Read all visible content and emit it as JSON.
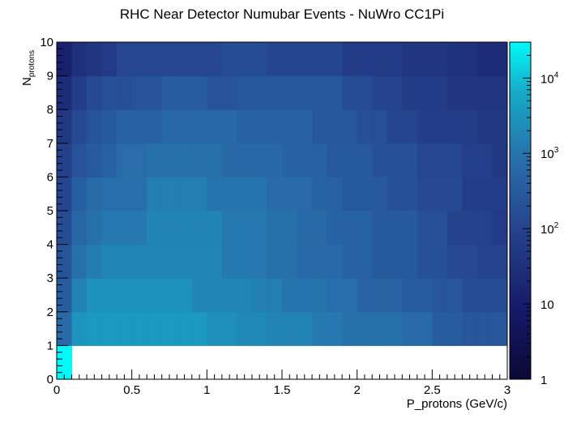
{
  "chart_data": {
    "type": "heatmap",
    "title": "RHC Near Detector Numubar Events - NuWro CC1Pi",
    "xlabel": "P_protons (GeV/c)",
    "ylabel_main": "N",
    "ylabel_sub": "protons",
    "x_edges": [
      0,
      0.1,
      0.2,
      0.3,
      0.4,
      0.5,
      0.6,
      0.7,
      0.8,
      0.9,
      1.0,
      1.1,
      1.2,
      1.3,
      1.4,
      1.5,
      1.6,
      1.7,
      1.8,
      1.9,
      2.0,
      2.1,
      2.2,
      2.3,
      2.4,
      2.5,
      2.6,
      2.7,
      2.8,
      2.9,
      3.0
    ],
    "y_edges": [
      0,
      1,
      2,
      3,
      4,
      5,
      6,
      7,
      8,
      9,
      10
    ],
    "xlim": [
      0,
      3
    ],
    "ylim": [
      0,
      10
    ],
    "zlim": [
      1,
      30000
    ],
    "z_scale": "log",
    "x_ticks": [
      "0",
      "0.5",
      "1",
      "1.5",
      "2",
      "2.5",
      "3"
    ],
    "x_tick_values": [
      0,
      0.5,
      1,
      1.5,
      2,
      2.5,
      3
    ],
    "y_ticks": [
      "0",
      "1",
      "2",
      "3",
      "4",
      "5",
      "6",
      "7",
      "8",
      "9",
      "10"
    ],
    "y_tick_values": [
      0,
      1,
      2,
      3,
      4,
      5,
      6,
      7,
      8,
      9,
      10
    ],
    "z_tick_values": [
      1,
      10,
      100,
      1000,
      10000
    ],
    "z_ticks": [
      "1",
      "10",
      "10",
      "10",
      "10"
    ],
    "z_tick_exponents": [
      "",
      "",
      "2",
      "3",
      "4"
    ],
    "values": [
      [
        30000,
        0,
        0,
        0,
        0,
        0,
        0,
        0,
        0,
        0,
        0,
        0,
        0,
        0,
        0,
        0,
        0,
        0,
        0,
        0,
        0,
        0,
        0,
        0,
        0,
        0,
        0,
        0,
        0,
        0
      ],
      [
        700,
        3000,
        3600,
        3600,
        3600,
        3600,
        3600,
        3600,
        3600,
        3600,
        2500,
        2500,
        2000,
        2000,
        1700,
        1700,
        1700,
        1200,
        1200,
        900,
        900,
        900,
        900,
        700,
        700,
        350,
        350,
        250,
        250,
        250
      ],
      [
        350,
        1600,
        2800,
        2800,
        2800,
        2800,
        2800,
        2800,
        2800,
        1800,
        1800,
        1800,
        1800,
        1400,
        1400,
        1000,
        1000,
        1000,
        800,
        800,
        500,
        500,
        500,
        360,
        360,
        250,
        250,
        150,
        150,
        150
      ],
      [
        220,
        900,
        1300,
        1800,
        1800,
        1800,
        1800,
        1800,
        1800,
        1800,
        1800,
        1200,
        1200,
        1200,
        900,
        900,
        650,
        650,
        650,
        450,
        450,
        300,
        300,
        300,
        200,
        200,
        130,
        130,
        100,
        100
      ],
      [
        160,
        550,
        900,
        1200,
        1200,
        1200,
        1700,
        1700,
        1700,
        1700,
        1700,
        1200,
        1200,
        1200,
        900,
        900,
        650,
        650,
        450,
        450,
        450,
        300,
        300,
        300,
        190,
        190,
        90,
        90,
        90,
        60
      ],
      [
        110,
        400,
        700,
        800,
        800,
        800,
        1400,
        1400,
        1400,
        1400,
        1000,
        1000,
        1000,
        1000,
        700,
        700,
        700,
        450,
        450,
        300,
        300,
        300,
        200,
        200,
        130,
        130,
        130,
        70,
        70,
        70
      ],
      [
        80,
        220,
        320,
        450,
        750,
        750,
        900,
        900,
        900,
        900,
        900,
        600,
        600,
        600,
        600,
        450,
        450,
        450,
        300,
        300,
        300,
        200,
        200,
        200,
        120,
        120,
        120,
        80,
        80,
        50
      ],
      [
        50,
        130,
        220,
        300,
        420,
        420,
        420,
        600,
        600,
        600,
        600,
        600,
        450,
        450,
        450,
        450,
        450,
        280,
        280,
        280,
        180,
        180,
        110,
        110,
        70,
        70,
        70,
        70,
        50,
        50
      ],
      [
        25,
        70,
        130,
        180,
        180,
        220,
        220,
        350,
        350,
        350,
        220,
        220,
        280,
        280,
        280,
        280,
        280,
        280,
        280,
        160,
        160,
        100,
        100,
        65,
        65,
        65,
        45,
        45,
        45,
        45
      ],
      [
        12,
        30,
        45,
        60,
        120,
        120,
        120,
        120,
        120,
        120,
        120,
        160,
        160,
        160,
        110,
        110,
        110,
        110,
        110,
        65,
        65,
        65,
        65,
        45,
        45,
        45,
        35,
        35,
        25,
        25
      ]
    ]
  }
}
